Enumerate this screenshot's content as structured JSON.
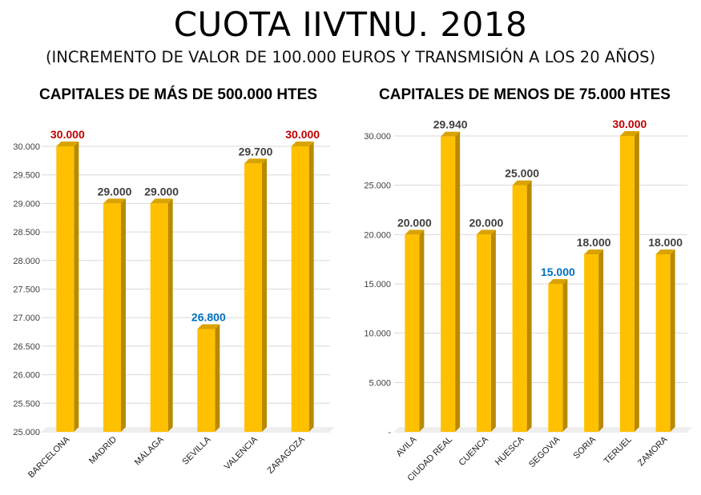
{
  "title": "CUOTA IIVTNU. 2018",
  "subtitle": "(INCREMENTO DE VALOR DE 100.000 EUROS Y TRANSMISIÓN A LOS 20 AÑOS)",
  "colors": {
    "bar": "#ffc000",
    "bar_side": "#b88a00",
    "bar_top": "#d9a300",
    "label_default": "#404040",
    "label_max": "#c00000",
    "label_min": "#0070c0",
    "grid": "#d9d9d9"
  },
  "chart_data": [
    {
      "type": "bar",
      "title": "CAPITALES DE MÁS DE 500.000 HTES",
      "categories": [
        "BARCELONA",
        "MADRID",
        "MÁLAGA",
        "SEVILLA",
        "VALENCIA",
        "ZARAGOZA"
      ],
      "values": [
        30000,
        29000,
        29000,
        26800,
        29700,
        30000
      ],
      "data_labels": [
        "30.000",
        "29.000",
        "29.000",
        "26.800",
        "29.700",
        "30.000"
      ],
      "label_colors": [
        "#c00000",
        "#404040",
        "#404040",
        "#0070c0",
        "#404040",
        "#c00000"
      ],
      "ylim": [
        25000,
        30000
      ],
      "yticks": [
        25000,
        25500,
        26000,
        26500,
        27000,
        27500,
        28000,
        28500,
        29000,
        29500,
        30000
      ],
      "ytick_labels": [
        "25.000",
        "25.500",
        "26.000",
        "26.500",
        "27.000",
        "27.500",
        "28.000",
        "28.500",
        "29.000",
        "29.500",
        "30.000"
      ],
      "grid": true
    },
    {
      "type": "bar",
      "title": "CAPITALES DE MENOS DE 75.000 HTES",
      "categories": [
        "AVILA",
        "CIUDAD REAL",
        "CUENCA",
        "HUESCA",
        "SEGOVIA",
        "SORIA",
        "TERUEL",
        "ZAMORA"
      ],
      "values": [
        20000,
        29940,
        20000,
        25000,
        15000,
        18000,
        30000,
        18000
      ],
      "data_labels": [
        "20.000",
        "29.940",
        "20.000",
        "25.000",
        "15.000",
        "18.000",
        "30.000",
        "18.000"
      ],
      "label_colors": [
        "#404040",
        "#404040",
        "#404040",
        "#404040",
        "#0070c0",
        "#404040",
        "#c00000",
        "#404040"
      ],
      "ylim": [
        0,
        30000
      ],
      "yticks": [
        0,
        5000,
        10000,
        15000,
        20000,
        25000,
        30000
      ],
      "ytick_labels": [
        "-",
        "5.000",
        "10.000",
        "15.000",
        "20.000",
        "25.000",
        "30.000"
      ],
      "grid": true
    }
  ]
}
